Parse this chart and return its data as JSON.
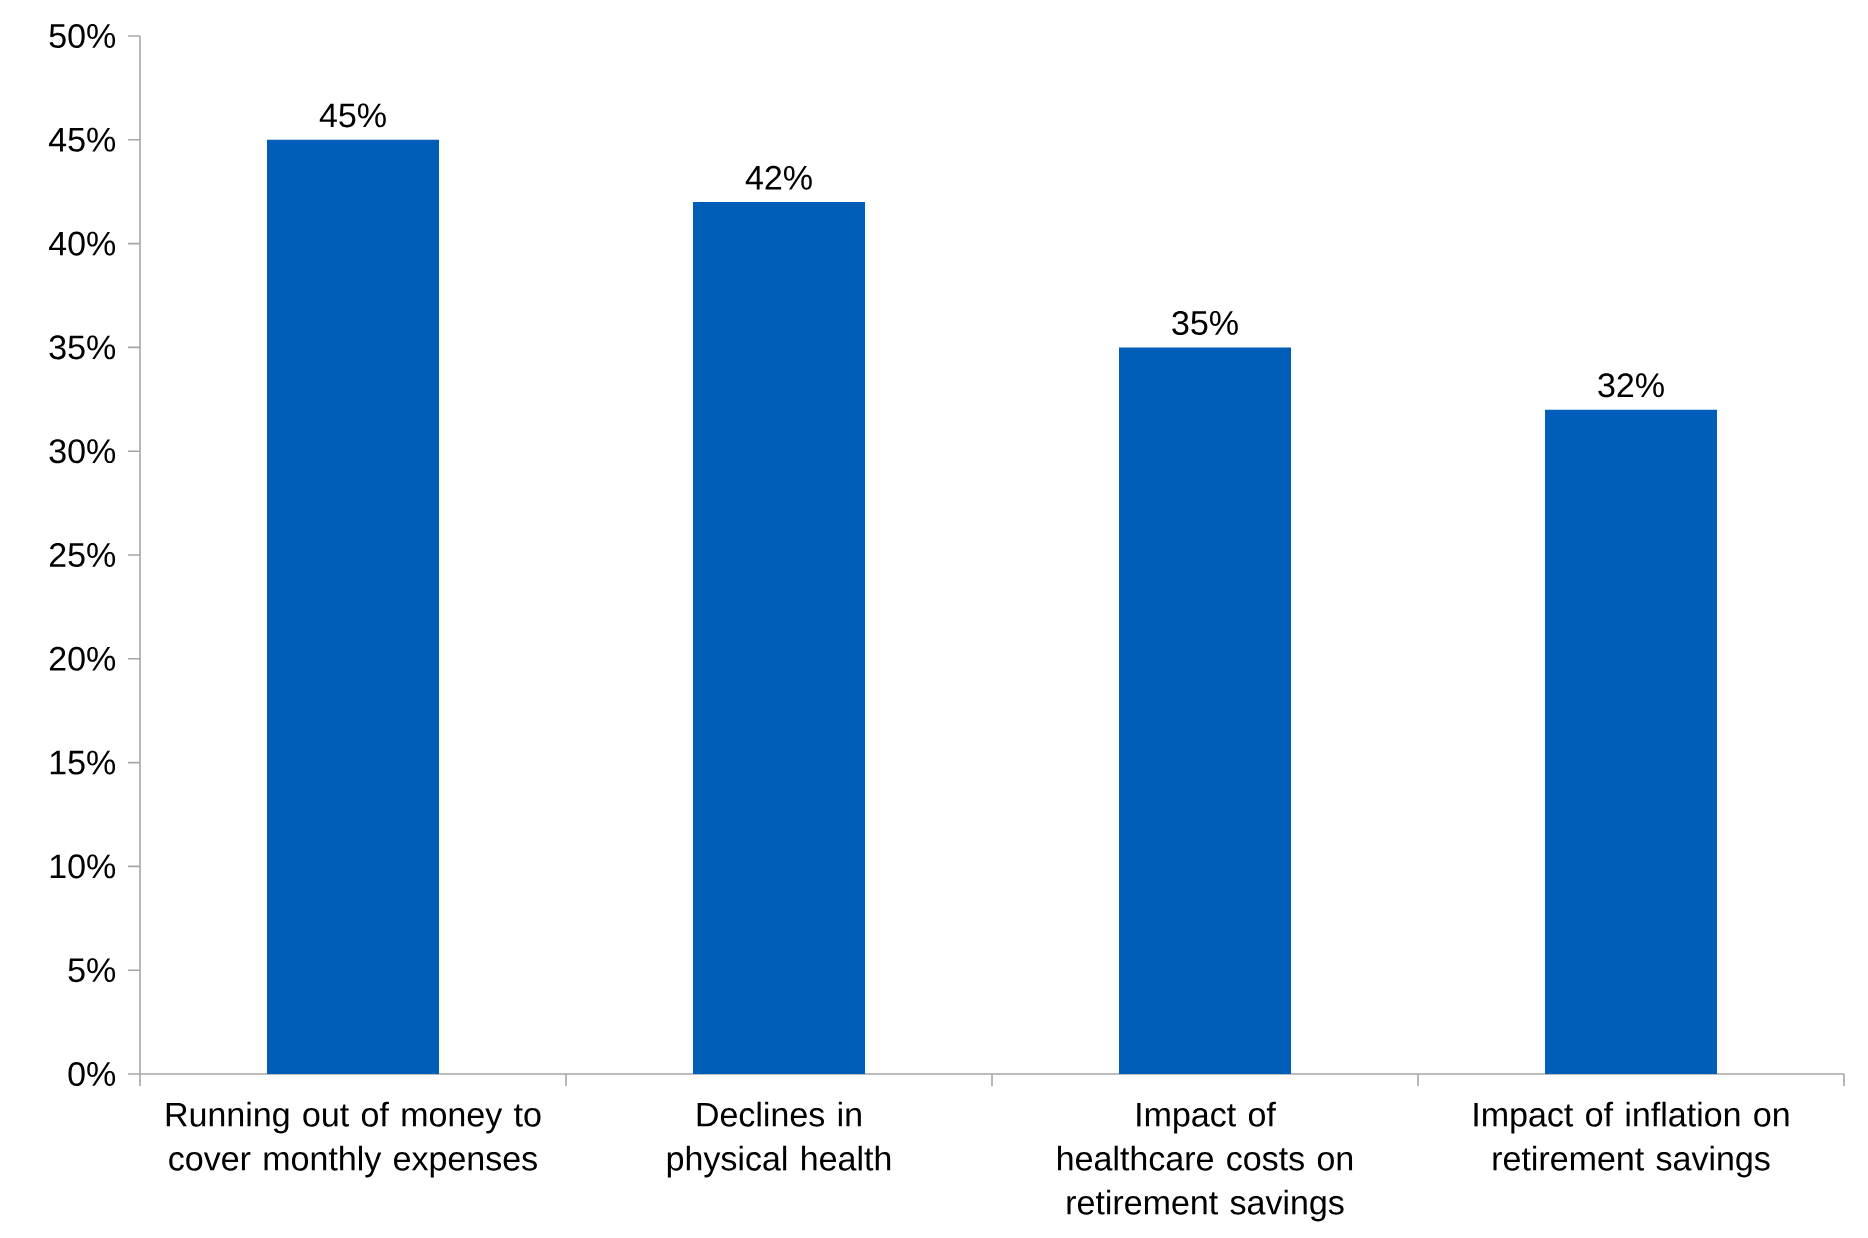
{
  "chart_data": {
    "type": "bar",
    "categories": [
      "Running out of money to cover monthly expenses",
      "Declines in physical health",
      "Impact of healthcare costs on retirement savings",
      "Impact of inflation on retirement savings"
    ],
    "values": [
      45,
      42,
      35,
      32
    ],
    "color": "#005eb8",
    "value_labels": [
      "45%",
      "42%",
      "35%",
      "32%"
    ],
    "ylim": [
      0,
      50
    ],
    "yticks": [
      {
        "value": 0,
        "label": "0%"
      },
      {
        "value": 5,
        "label": "5%"
      },
      {
        "value": 10,
        "label": "10%"
      },
      {
        "value": 15,
        "label": "15%"
      },
      {
        "value": 20,
        "label": "20%"
      },
      {
        "value": 25,
        "label": "25%"
      },
      {
        "value": 30,
        "label": "30%"
      },
      {
        "value": 35,
        "label": "35%"
      },
      {
        "value": 40,
        "label": "40%"
      },
      {
        "value": 45,
        "label": "45%"
      },
      {
        "value": 50,
        "label": "50%"
      }
    ],
    "grid": false
  }
}
